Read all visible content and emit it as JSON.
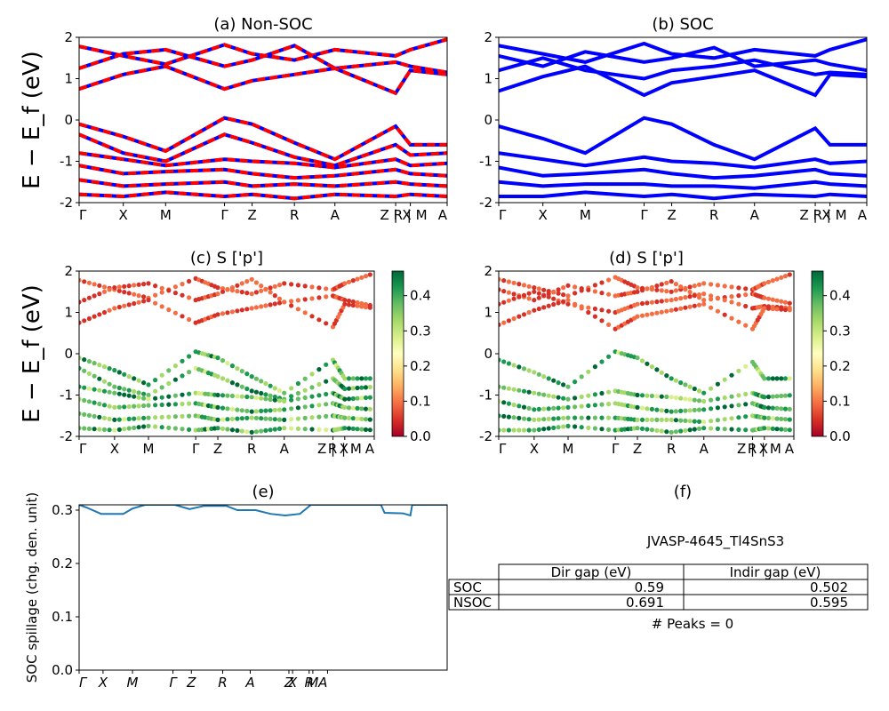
{
  "chart_data": [
    {
      "id": "a",
      "type": "line",
      "title": "(a) Non-SOC",
      "ylabel": "E − E_f (eV)",
      "ylim": [
        -2,
        2
      ],
      "yticks": [
        -2,
        -1,
        0,
        1,
        2
      ],
      "xticklabels": [
        "Γ",
        "X",
        "M",
        "Γ",
        "Z",
        "R",
        "A",
        "Z | X",
        "R | M",
        "A"
      ],
      "xtickpos": [
        0,
        0.12,
        0.235,
        0.395,
        0.47,
        0.585,
        0.695,
        0.86,
        0.9,
        1.0
      ],
      "series": [
        {
          "values": [
            [
              0,
              1.78
            ],
            [
              0.12,
              1.55
            ],
            [
              0.235,
              1.35
            ],
            [
              0.395,
              1.82
            ],
            [
              0.47,
              1.6
            ],
            [
              0.585,
              1.45
            ],
            [
              0.695,
              1.7
            ],
            [
              0.86,
              1.55
            ],
            [
              0.9,
              1.7
            ],
            [
              1.0,
              1.95
            ]
          ]
        },
        {
          "values": [
            [
              0,
              1.25
            ],
            [
              0.12,
              1.6
            ],
            [
              0.235,
              1.7
            ],
            [
              0.395,
              1.3
            ],
            [
              0.47,
              1.45
            ],
            [
              0.585,
              1.8
            ],
            [
              0.695,
              1.25
            ],
            [
              0.86,
              1.4
            ],
            [
              0.9,
              1.3
            ],
            [
              1.0,
              1.15
            ]
          ]
        },
        {
          "values": [
            [
              0,
              0.75
            ],
            [
              0.12,
              1.1
            ],
            [
              0.235,
              1.3
            ],
            [
              0.395,
              0.75
            ],
            [
              0.47,
              0.95
            ],
            [
              0.585,
              1.1
            ],
            [
              0.695,
              1.25
            ],
            [
              0.86,
              0.65
            ],
            [
              0.9,
              1.2
            ],
            [
              1.0,
              1.1
            ]
          ]
        },
        {
          "values": [
            [
              0,
              -0.1
            ],
            [
              0.12,
              -0.4
            ],
            [
              0.235,
              -0.75
            ],
            [
              0.395,
              0.05
            ],
            [
              0.47,
              -0.1
            ],
            [
              0.585,
              -0.55
            ],
            [
              0.695,
              -0.95
            ],
            [
              0.86,
              -0.15
            ],
            [
              0.9,
              -0.6
            ],
            [
              1.0,
              -0.6
            ]
          ]
        },
        {
          "values": [
            [
              0,
              -0.35
            ],
            [
              0.12,
              -0.8
            ],
            [
              0.235,
              -1.0
            ],
            [
              0.395,
              -0.35
            ],
            [
              0.47,
              -0.55
            ],
            [
              0.585,
              -0.9
            ],
            [
              0.695,
              -1.1
            ],
            [
              0.86,
              -0.6
            ],
            [
              0.9,
              -0.85
            ],
            [
              1.0,
              -0.8
            ]
          ]
        },
        {
          "values": [
            [
              0,
              -0.8
            ],
            [
              0.12,
              -0.95
            ],
            [
              0.235,
              -1.1
            ],
            [
              0.395,
              -0.95
            ],
            [
              0.47,
              -1.0
            ],
            [
              0.585,
              -1.05
            ],
            [
              0.695,
              -1.15
            ],
            [
              0.86,
              -0.95
            ],
            [
              0.9,
              -1.1
            ],
            [
              1.0,
              -1.05
            ]
          ]
        },
        {
          "values": [
            [
              0,
              -1.1
            ],
            [
              0.12,
              -1.3
            ],
            [
              0.235,
              -1.25
            ],
            [
              0.395,
              -1.2
            ],
            [
              0.47,
              -1.3
            ],
            [
              0.585,
              -1.4
            ],
            [
              0.695,
              -1.35
            ],
            [
              0.86,
              -1.2
            ],
            [
              0.9,
              -1.3
            ],
            [
              1.0,
              -1.35
            ]
          ]
        },
        {
          "values": [
            [
              0,
              -1.45
            ],
            [
              0.12,
              -1.6
            ],
            [
              0.235,
              -1.55
            ],
            [
              0.395,
              -1.5
            ],
            [
              0.47,
              -1.6
            ],
            [
              0.585,
              -1.55
            ],
            [
              0.695,
              -1.6
            ],
            [
              0.86,
              -1.5
            ],
            [
              0.9,
              -1.55
            ],
            [
              1.0,
              -1.6
            ]
          ]
        },
        {
          "values": [
            [
              0,
              -1.8
            ],
            [
              0.12,
              -1.85
            ],
            [
              0.235,
              -1.75
            ],
            [
              0.395,
              -1.85
            ],
            [
              0.47,
              -1.8
            ],
            [
              0.585,
              -1.9
            ],
            [
              0.695,
              -1.8
            ],
            [
              0.86,
              -1.85
            ],
            [
              0.9,
              -1.8
            ],
            [
              1.0,
              -1.85
            ]
          ]
        }
      ]
    },
    {
      "id": "b",
      "type": "line",
      "title": "(b) SOC",
      "ylim": [
        -2,
        2
      ],
      "yticks": [
        -2,
        -1,
        0,
        1,
        2
      ],
      "xticklabels": [
        "Γ",
        "X",
        "M",
        "Γ",
        "Z",
        "R",
        "A",
        "Z | X",
        "R | M",
        "A"
      ],
      "xtickpos": [
        0,
        0.12,
        0.235,
        0.395,
        0.47,
        0.585,
        0.695,
        0.86,
        0.9,
        1.0
      ],
      "series": [
        {
          "values": [
            [
              0,
              1.8
            ],
            [
              0.12,
              1.6
            ],
            [
              0.235,
              1.4
            ],
            [
              0.395,
              1.85
            ],
            [
              0.47,
              1.6
            ],
            [
              0.585,
              1.5
            ],
            [
              0.695,
              1.7
            ],
            [
              0.86,
              1.55
            ],
            [
              0.9,
              1.7
            ],
            [
              1.0,
              1.95
            ]
          ]
        },
        {
          "values": [
            [
              0,
              1.55
            ],
            [
              0.12,
              1.3
            ],
            [
              0.235,
              1.65
            ],
            [
              0.395,
              1.4
            ],
            [
              0.47,
              1.5
            ],
            [
              0.585,
              1.75
            ],
            [
              0.695,
              1.3
            ],
            [
              0.86,
              1.45
            ],
            [
              0.9,
              1.35
            ],
            [
              1.0,
              1.2
            ]
          ]
        },
        {
          "values": [
            [
              0,
              1.2
            ],
            [
              0.12,
              1.5
            ],
            [
              0.235,
              1.2
            ],
            [
              0.395,
              1.0
            ],
            [
              0.47,
              1.2
            ],
            [
              0.585,
              1.3
            ],
            [
              0.695,
              1.45
            ],
            [
              0.86,
              1.1
            ],
            [
              0.9,
              1.15
            ],
            [
              1.0,
              1.1
            ]
          ]
        },
        {
          "values": [
            [
              0,
              0.7
            ],
            [
              0.12,
              1.05
            ],
            [
              0.235,
              1.3
            ],
            [
              0.395,
              0.6
            ],
            [
              0.47,
              0.9
            ],
            [
              0.585,
              1.05
            ],
            [
              0.695,
              1.2
            ],
            [
              0.86,
              0.6
            ],
            [
              0.9,
              1.1
            ],
            [
              1.0,
              1.05
            ]
          ]
        },
        {
          "values": [
            [
              0,
              -0.15
            ],
            [
              0.12,
              -0.45
            ],
            [
              0.235,
              -0.8
            ],
            [
              0.395,
              0.05
            ],
            [
              0.47,
              -0.1
            ],
            [
              0.585,
              -0.6
            ],
            [
              0.695,
              -0.95
            ],
            [
              0.86,
              -0.2
            ],
            [
              0.9,
              -0.6
            ],
            [
              1.0,
              -0.6
            ]
          ]
        },
        {
          "values": [
            [
              0,
              -0.8
            ],
            [
              0.12,
              -0.95
            ],
            [
              0.235,
              -1.1
            ],
            [
              0.395,
              -0.9
            ],
            [
              0.47,
              -1.0
            ],
            [
              0.585,
              -1.05
            ],
            [
              0.695,
              -1.15
            ],
            [
              0.86,
              -0.95
            ],
            [
              0.9,
              -1.05
            ],
            [
              1.0,
              -1.0
            ]
          ]
        },
        {
          "values": [
            [
              0,
              -1.15
            ],
            [
              0.12,
              -1.35
            ],
            [
              0.235,
              -1.3
            ],
            [
              0.395,
              -1.2
            ],
            [
              0.47,
              -1.3
            ],
            [
              0.585,
              -1.4
            ],
            [
              0.695,
              -1.35
            ],
            [
              0.86,
              -1.2
            ],
            [
              0.9,
              -1.3
            ],
            [
              1.0,
              -1.35
            ]
          ]
        },
        {
          "values": [
            [
              0,
              -1.5
            ],
            [
              0.12,
              -1.6
            ],
            [
              0.235,
              -1.55
            ],
            [
              0.395,
              -1.55
            ],
            [
              0.47,
              -1.6
            ],
            [
              0.585,
              -1.6
            ],
            [
              0.695,
              -1.65
            ],
            [
              0.86,
              -1.5
            ],
            [
              0.9,
              -1.55
            ],
            [
              1.0,
              -1.6
            ]
          ]
        },
        {
          "values": [
            [
              0,
              -1.85
            ],
            [
              0.12,
              -1.85
            ],
            [
              0.235,
              -1.75
            ],
            [
              0.395,
              -1.85
            ],
            [
              0.47,
              -1.8
            ],
            [
              0.585,
              -1.9
            ],
            [
              0.695,
              -1.8
            ],
            [
              0.86,
              -1.85
            ],
            [
              0.9,
              -1.8
            ],
            [
              1.0,
              -1.85
            ]
          ]
        }
      ]
    },
    {
      "id": "c",
      "type": "scatter",
      "title": "(c)  S ['p']",
      "ylabel": "E − E_f (eV)",
      "ylim": [
        -2,
        2
      ],
      "yticks": [
        -2,
        -1,
        0,
        1,
        2
      ],
      "xticklabels": [
        "Γ",
        "X",
        "M",
        "Γ",
        "Z",
        "R",
        "A",
        "Z | X",
        "R | M",
        "A"
      ],
      "xtickpos": [
        0,
        0.12,
        0.235,
        0.395,
        0.47,
        0.585,
        0.695,
        0.86,
        0.9,
        1.0
      ],
      "colorbar": {
        "min": 0.0,
        "max": 0.47,
        "ticks": [
          "0.0",
          "0.1",
          "0.2",
          "0.3",
          "0.4"
        ]
      }
    },
    {
      "id": "d",
      "type": "scatter",
      "title": "(d) S ['p']",
      "ylim": [
        -2,
        2
      ],
      "yticks": [
        -2,
        -1,
        0,
        1,
        2
      ],
      "xticklabels": [
        "Γ",
        "X",
        "M",
        "Γ",
        "Z",
        "R",
        "A",
        "Z | X",
        "R | M",
        "A"
      ],
      "xtickpos": [
        0,
        0.12,
        0.235,
        0.395,
        0.47,
        0.585,
        0.695,
        0.86,
        0.9,
        1.0
      ],
      "colorbar": {
        "min": 0.0,
        "max": 0.47,
        "ticks": [
          "0.0",
          "0.1",
          "0.2",
          "0.3",
          "0.4"
        ]
      }
    },
    {
      "id": "e",
      "type": "line",
      "title": "(e)",
      "ylabel": "SOC spillage (chg. den. unit)",
      "ylim": [
        0,
        0.31
      ],
      "yticks": [
        "0.0",
        "0.1",
        "0.2",
        "0.3"
      ],
      "xticklabels": [
        "Γ",
        "X",
        "M",
        "Γ",
        "Z",
        "R",
        "A",
        "Z",
        "X",
        "R",
        "M",
        "A"
      ],
      "xtickpos": [
        0,
        0.065,
        0.145,
        0.255,
        0.305,
        0.39,
        0.465,
        0.57,
        0.58,
        0.625,
        0.635,
        0.675
      ],
      "series": [
        {
          "values": [
            [
              0,
              0.31
            ],
            [
              0.02,
              0.305
            ],
            [
              0.06,
              0.293
            ],
            [
              0.12,
              0.293
            ],
            [
              0.145,
              0.303
            ],
            [
              0.18,
              0.31
            ],
            [
              0.26,
              0.31
            ],
            [
              0.3,
              0.302
            ],
            [
              0.34,
              0.308
            ],
            [
              0.4,
              0.308
            ],
            [
              0.43,
              0.3
            ],
            [
              0.48,
              0.3
            ],
            [
              0.52,
              0.293
            ],
            [
              0.56,
              0.29
            ],
            [
              0.6,
              0.293
            ],
            [
              0.63,
              0.31
            ],
            [
              0.7,
              0.31
            ],
            [
              0.76,
              0.31
            ],
            [
              0.82,
              0.31
            ],
            [
              0.83,
              0.295
            ],
            [
              0.88,
              0.294
            ],
            [
              0.9,
              0.29
            ],
            [
              0.905,
              0.31
            ],
            [
              1.0,
              0.31
            ]
          ]
        }
      ]
    }
  ],
  "panel_f": {
    "title": "(f)",
    "material": "JVASP-4645_Tl4SnS3",
    "columns": [
      "Dir gap (eV)",
      "Indir gap (eV)"
    ],
    "rows": [
      {
        "label": "SOC",
        "dir": "0.59",
        "indir": "0.502"
      },
      {
        "label": "NSOC",
        "dir": "0.691",
        "indir": "0.595"
      }
    ],
    "peaks": "# Peaks = 0"
  },
  "colors": {
    "red": "#ff0000",
    "blue": "#0000ff",
    "line": "#1f77b4"
  }
}
